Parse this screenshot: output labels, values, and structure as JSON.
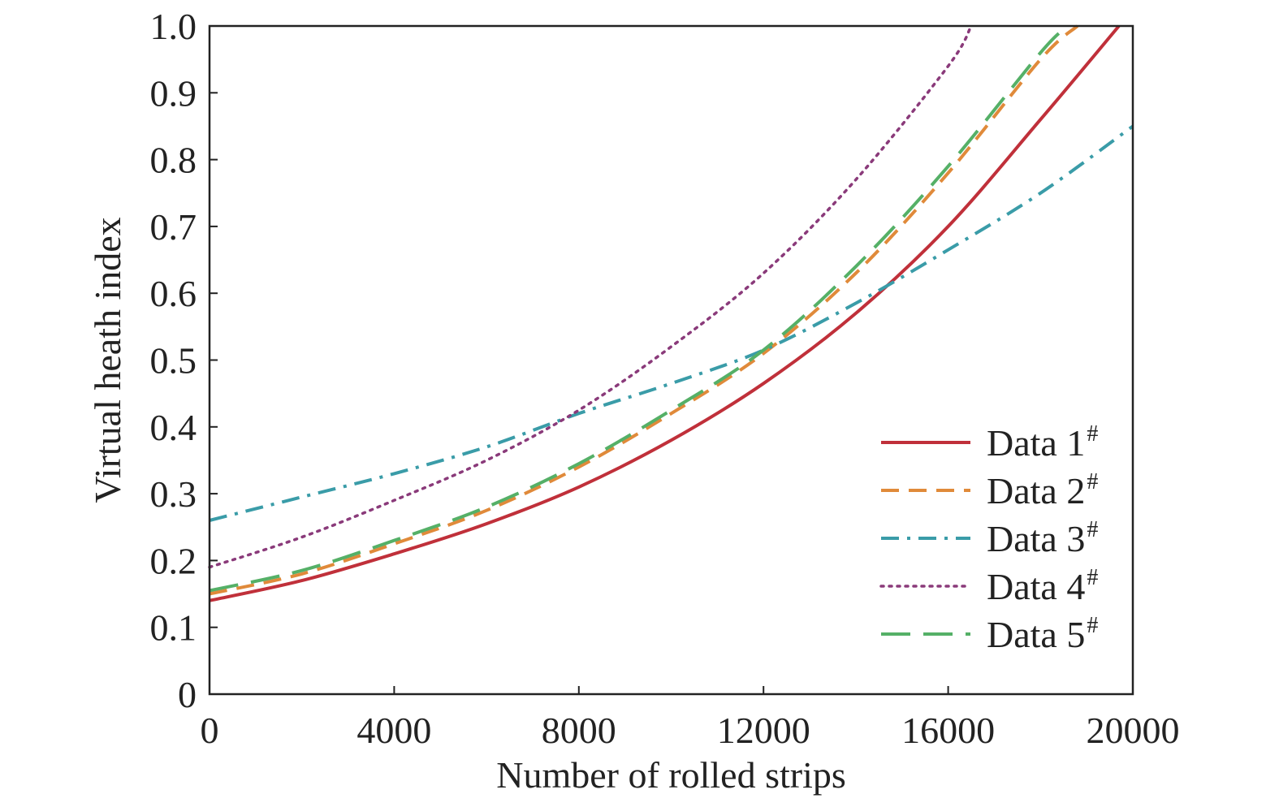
{
  "chart_data": {
    "type": "line",
    "xlabel": "Number of rolled strips",
    "ylabel": "Virtual heath index",
    "xlim": [
      0,
      20000
    ],
    "ylim": [
      0,
      1.0
    ],
    "x_ticks": [
      0,
      4000,
      8000,
      12000,
      16000,
      20000
    ],
    "x_tick_labels": [
      "0",
      "4000",
      "8000",
      "12000",
      "16000",
      "20000"
    ],
    "y_ticks": [
      0,
      0.1,
      0.2,
      0.3,
      0.4,
      0.5,
      0.6,
      0.7,
      0.8,
      0.9,
      1.0
    ],
    "y_tick_labels": [
      "0",
      "0.1",
      "0.2",
      "0.3",
      "0.4",
      "0.5",
      "0.6",
      "0.7",
      "0.8",
      "0.9",
      "1.0"
    ],
    "grid": false,
    "legend_position": "bottom-right",
    "series": [
      {
        "name": "Data 1",
        "name_sup": "#",
        "color": "#c0303a",
        "style": "solid",
        "x": [
          0,
          2000,
          4000,
          6000,
          8000,
          10000,
          12000,
          14000,
          16000,
          18000,
          19700
        ],
        "values": [
          0.14,
          0.17,
          0.21,
          0.255,
          0.31,
          0.38,
          0.465,
          0.57,
          0.7,
          0.86,
          1.0
        ]
      },
      {
        "name": "Data 2",
        "name_sup": "#",
        "color": "#e08a3a",
        "style": "dashed",
        "x": [
          0,
          2000,
          4000,
          6000,
          8000,
          10000,
          12000,
          14000,
          16000,
          18000,
          18800
        ],
        "values": [
          0.15,
          0.18,
          0.225,
          0.275,
          0.34,
          0.42,
          0.51,
          0.63,
          0.78,
          0.95,
          1.0
        ]
      },
      {
        "name": "Data 3",
        "name_sup": "#",
        "color": "#3a9ca8",
        "style": "dashdot",
        "x": [
          0,
          2000,
          4000,
          6000,
          8000,
          10000,
          12000,
          14000,
          16000,
          18000,
          20000
        ],
        "values": [
          0.26,
          0.295,
          0.33,
          0.37,
          0.42,
          0.465,
          0.515,
          0.585,
          0.665,
          0.75,
          0.85
        ]
      },
      {
        "name": "Data 4",
        "name_sup": "#",
        "color": "#8a3a7a",
        "style": "dotted",
        "x": [
          0,
          2000,
          4000,
          6000,
          8000,
          10000,
          12000,
          14000,
          16000,
          16500
        ],
        "values": [
          0.19,
          0.235,
          0.29,
          0.35,
          0.425,
          0.52,
          0.63,
          0.77,
          0.94,
          1.0
        ]
      },
      {
        "name": "Data 5",
        "name_sup": "#",
        "color": "#55b067",
        "style": "longdash",
        "x": [
          0,
          2000,
          4000,
          6000,
          8000,
          10000,
          12000,
          14000,
          16000,
          18000,
          18600
        ],
        "values": [
          0.155,
          0.185,
          0.23,
          0.28,
          0.345,
          0.425,
          0.515,
          0.64,
          0.79,
          0.96,
          1.0
        ]
      }
    ]
  }
}
